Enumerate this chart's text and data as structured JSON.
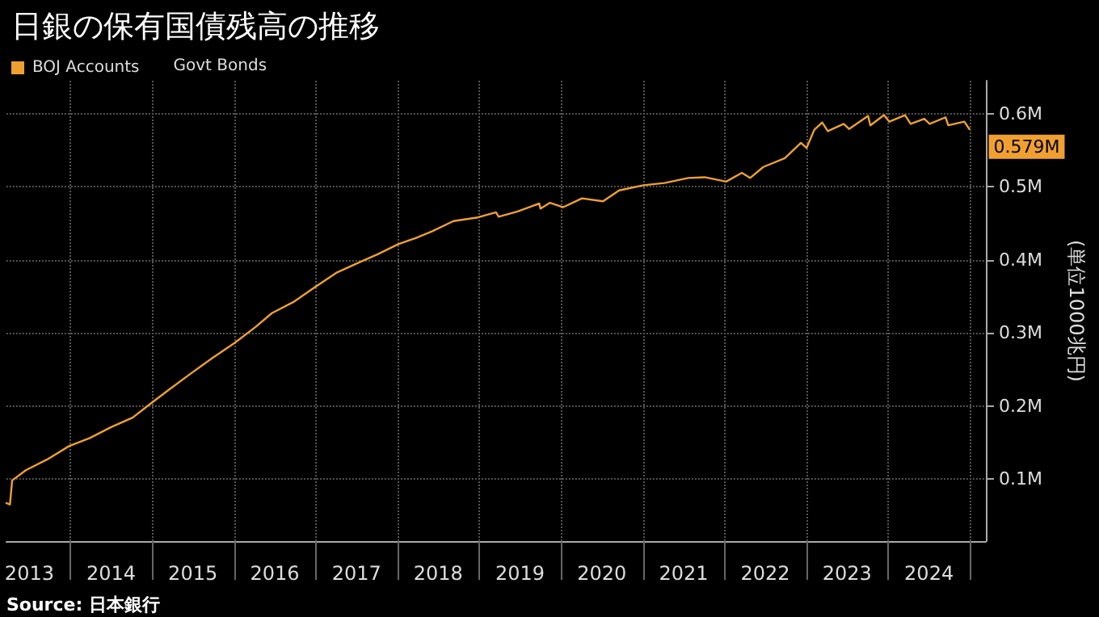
{
  "chart_data": {
    "type": "line",
    "title": "日銀の保有国債残高の推移",
    "ylabel": "(単位1000兆円)",
    "legend_title": "Govt Bonds",
    "legend": "top left",
    "grid": true,
    "marker": "none",
    "line_style": "solid",
    "annotations": [
      "Source: 日本銀行",
      {
        "text": "0.579M",
        "x": "2024-12-28",
        "y": 0.579
      }
    ],
    "xlim": [
      "2013-03-20",
      "2025-03-12"
    ],
    "xticks": [
      {
        "value": "2013-07-01",
        "label": "2013"
      },
      {
        "value": "2014-01-01",
        "label": null
      },
      {
        "value": "2014-07-01",
        "label": "2014"
      },
      {
        "value": "2015-01-01",
        "label": null
      },
      {
        "value": "2015-07-01",
        "label": "2015"
      },
      {
        "value": "2016-01-01",
        "label": null
      },
      {
        "value": "2016-07-01",
        "label": "2016"
      },
      {
        "value": "2017-01-01",
        "label": null
      },
      {
        "value": "2017-07-01",
        "label": "2017"
      },
      {
        "value": "2018-01-01",
        "label": null
      },
      {
        "value": "2018-07-01",
        "label": "2018"
      },
      {
        "value": "2019-01-01",
        "label": null
      },
      {
        "value": "2019-07-01",
        "label": "2019"
      },
      {
        "value": "2020-01-01",
        "label": null
      },
      {
        "value": "2020-07-01",
        "label": "2020"
      },
      {
        "value": "2021-01-01",
        "label": null
      },
      {
        "value": "2021-07-01",
        "label": "2021"
      },
      {
        "value": "2022-01-01",
        "label": null
      },
      {
        "value": "2022-07-01",
        "label": "2022"
      },
      {
        "value": "2023-01-01",
        "label": null
      },
      {
        "value": "2023-07-01",
        "label": "2023"
      },
      {
        "value": "2024-01-01",
        "label": null
      },
      {
        "value": "2024-07-01",
        "label": "2024"
      },
      {
        "value": "2025-01-01",
        "label": null
      }
    ],
    "ylim": [
      0.015,
      0.645
    ],
    "yticks": [
      {
        "value": 0.1,
        "label": "0.1M"
      },
      {
        "value": 0.2,
        "label": "0.2M"
      },
      {
        "value": 0.3,
        "label": "0.3M"
      },
      {
        "value": 0.4,
        "label": "0.4M"
      },
      {
        "value": 0.5,
        "label": "0.5M"
      },
      {
        "value": 0.6,
        "label": "0.6M"
      }
    ],
    "series": [
      {
        "name": "BOJ Accounts",
        "color": "#f0a030",
        "x": [
          "2013-03-20",
          "2013-04-05",
          "2013-04-15",
          "2013-06-15",
          "2013-09-20",
          "2013-12-25",
          "2014-03-28",
          "2014-07-01",
          "2014-10-05",
          "2014-12-28",
          "2015-03-20",
          "2015-06-25",
          "2015-09-28",
          "2016-01-03",
          "2016-04-06",
          "2016-06-18",
          "2016-09-21",
          "2016-12-25",
          "2017-04-01",
          "2017-07-03",
          "2017-10-07",
          "2018-01-01",
          "2018-03-24",
          "2018-06-04",
          "2018-09-07",
          "2018-12-25",
          "2019-03-16",
          "2019-03-28",
          "2019-06-20",
          "2019-09-25",
          "2019-10-01",
          "2019-11-12",
          "2020-01-10",
          "2020-04-03",
          "2020-07-06",
          "2020-09-16",
          "2021-01-03",
          "2021-04-06",
          "2021-07-22",
          "2021-10-03",
          "2022-01-07",
          "2022-03-18",
          "2022-04-24",
          "2022-06-22",
          "2022-09-26",
          "2022-12-07",
          "2023-01-01",
          "2023-02-05",
          "2023-03-12",
          "2023-04-06",
          "2023-06-16",
          "2023-07-10",
          "2023-10-03",
          "2023-10-13",
          "2023-12-13",
          "2024-01-06",
          "2024-03-16",
          "2024-04-10",
          "2024-06-10",
          "2024-07-04",
          "2024-09-13",
          "2024-09-25",
          "2024-12-06",
          "2024-12-28"
        ],
        "values": [
          0.067,
          0.065,
          0.098,
          0.112,
          0.127,
          0.145,
          0.156,
          0.171,
          0.184,
          0.204,
          0.223,
          0.245,
          0.266,
          0.286,
          0.308,
          0.327,
          0.342,
          0.362,
          0.382,
          0.395,
          0.408,
          0.421,
          0.43,
          0.439,
          0.453,
          0.458,
          0.465,
          0.459,
          0.466,
          0.477,
          0.47,
          0.478,
          0.472,
          0.484,
          0.48,
          0.495,
          0.502,
          0.505,
          0.512,
          0.513,
          0.507,
          0.519,
          0.512,
          0.527,
          0.539,
          0.56,
          0.553,
          0.578,
          0.588,
          0.576,
          0.586,
          0.579,
          0.597,
          0.584,
          0.598,
          0.589,
          0.598,
          0.586,
          0.593,
          0.586,
          0.595,
          0.584,
          0.589,
          0.579
        ]
      }
    ]
  }
}
